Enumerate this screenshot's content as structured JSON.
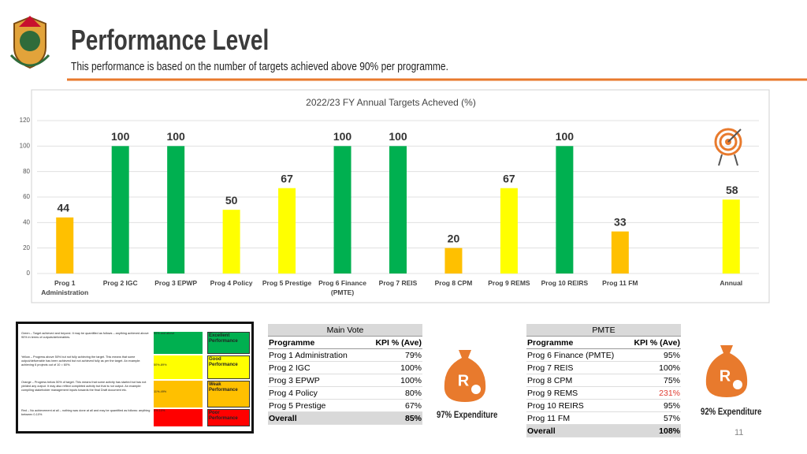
{
  "header": {
    "title": "Performance Level",
    "subtitle": "This performance is based on the number of targets achieved above 90% per programme."
  },
  "chart_data": {
    "type": "bar",
    "title": "2022/23 FY Annual Targets Acheved (%)",
    "categories": [
      "Prog 1 Administration",
      "Prog 2 IGC",
      "Prog 3 EPWP",
      "Prog 4 Policy",
      "Prog 5 Prestige",
      "Prog 6 Finance (PMTE)",
      "Prog 7 REIS",
      "Prog 8 CPM",
      "Prog 9 REMS",
      "Prog 10 REIRS",
      "Prog 11 FM",
      null,
      "Annual"
    ],
    "values": [
      44,
      100,
      100,
      50,
      67,
      100,
      100,
      20,
      67,
      100,
      33,
      null,
      58
    ],
    "colors": [
      "#ffc000",
      "#00b050",
      "#00b050",
      "#ffff00",
      "#ffff00",
      "#00b050",
      "#00b050",
      "#ffc000",
      "#ffff00",
      "#00b050",
      "#ffc000",
      null,
      "#ffff00"
    ],
    "ylim": [
      0,
      120
    ],
    "yticks": [
      0,
      20,
      40,
      60,
      80,
      100,
      120
    ],
    "grid": true
  },
  "legend_box": {
    "rows": [
      {
        "description": "Green – Target achieved and beyond. It may be quantified as follows – anything achieved above 90% in terms of outputs/deliverables.",
        "range": "90% and above",
        "label": "Excellent Performance"
      },
      {
        "description": "Yellow – Progress above 50% but not fully achieving the target. This means that some output/deliverable has been achieved but not achieved fully as per the target. An example: achieving 6 projects out of 10 = 60%.",
        "range": "50%-89%",
        "label": "Good Performance"
      },
      {
        "description": "Orange – Progress below 50% of target. This means that some activity has started but has not yielded any output. It may also reflect completed activity but that is not output. An example: compiling stakeholder management inputs towards the final Draft document etc.",
        "range": "11%-49%",
        "label": "Weak Performance"
      },
      {
        "description": "Red – No achievement at all – nothing was done at all and may be quantified as follows: anything between 0-10%",
        "range": "0%-10%",
        "label": "Poor Performance"
      }
    ]
  },
  "main_vote": {
    "title": "Main Vote",
    "columns": [
      "Programme",
      "KPI % (Ave)"
    ],
    "rows": [
      [
        "Prog 1 Administration",
        "79%"
      ],
      [
        "Prog 2 IGC",
        "100%"
      ],
      [
        "Prog 3 EPWP",
        "100%"
      ],
      [
        "Prog 4 Policy",
        "80%"
      ],
      [
        "Prog 5 Prestige",
        "67%"
      ]
    ],
    "overall": [
      "Overall",
      "85%"
    ]
  },
  "pmte": {
    "title": "PMTE",
    "columns": [
      "Programme",
      "KPI % (Ave)"
    ],
    "rows": [
      [
        "Prog 6 Finance (PMTE)",
        "95%"
      ],
      [
        "Prog 7 REIS",
        "100%"
      ],
      [
        "Prog 8 CPM",
        "75%"
      ],
      [
        "Prog 9 REMS",
        "231%"
      ],
      [
        "Prog 10 REIRS",
        "95%"
      ],
      [
        "Prog 11 FM",
        "57%"
      ]
    ],
    "overall": [
      "Overall",
      "108%"
    ]
  },
  "expenditure": [
    "97% Expenditure",
    "92% Expenditure"
  ],
  "page_number": "11"
}
